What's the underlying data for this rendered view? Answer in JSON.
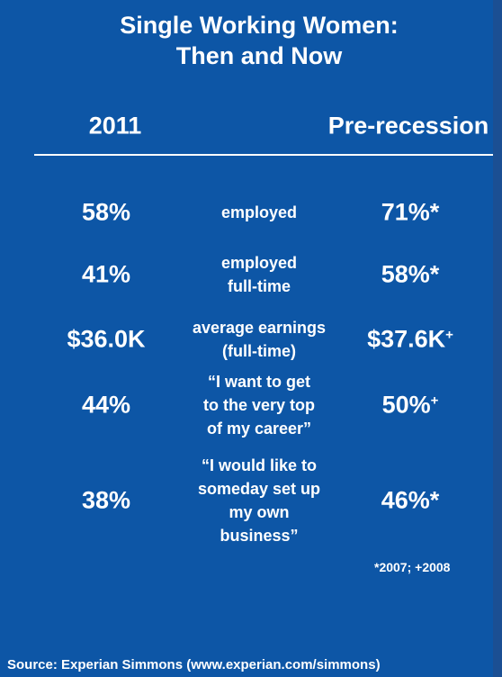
{
  "header": {
    "title": [
      "Single Working Women:",
      "Then and Now"
    ]
  },
  "table": {
    "columns": [
      "2011",
      "Pre-recession"
    ],
    "rows": [
      {
        "then": "58%",
        "label": [
          "employed"
        ],
        "now": "71%*"
      },
      {
        "then": "41%",
        "label": [
          "employed",
          "full-time"
        ],
        "now": "58%*"
      },
      {
        "then": "$36.0K",
        "label": [
          "average earnings",
          "(full-time)"
        ],
        "now": "$37.6K",
        "now_mark": "+"
      },
      {
        "then": "44%",
        "label": [
          "“I want to get",
          "to the very top",
          "of my career”"
        ],
        "now": "50%",
        "now_mark": "+"
      },
      {
        "then": "38%",
        "label": [
          "“I would like to",
          "someday set up",
          "my own",
          "business”"
        ],
        "now": "46%*"
      }
    ]
  },
  "footnote": "*2007; +2008",
  "source": "Source: Experian Simmons (www.experian.com/simmons)"
}
